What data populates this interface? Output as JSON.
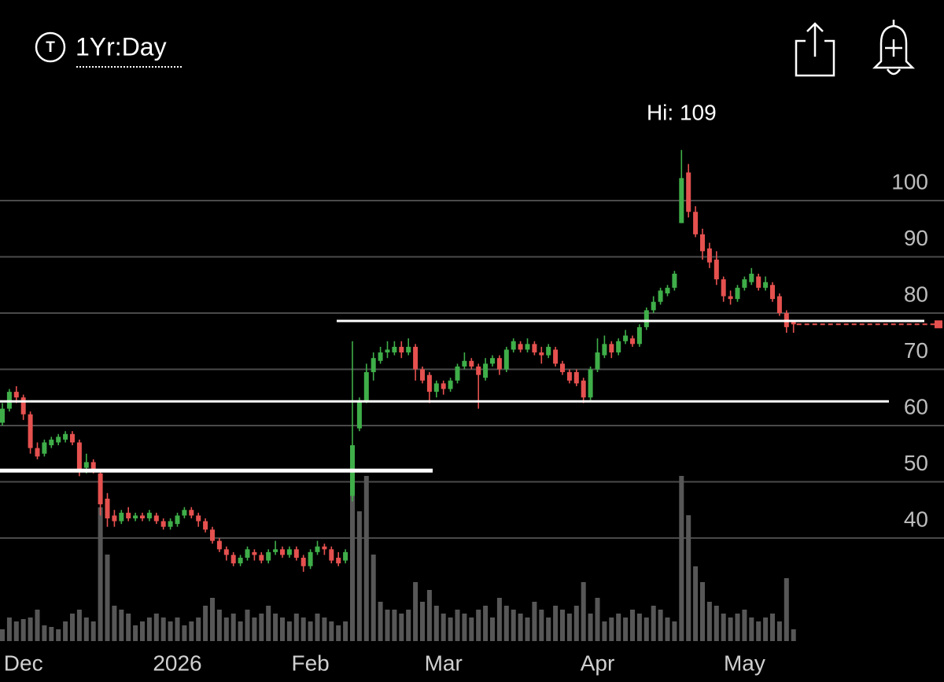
{
  "header": {
    "icon": "T",
    "period": "1Yr:Day"
  },
  "chart_data": {
    "type": "candlestick",
    "annotation": "Hi: 109",
    "categories": [
      null,
      null,
      null,
      "Dec",
      null,
      null,
      null,
      null,
      null,
      null,
      null,
      null,
      null,
      null,
      null,
      null,
      null,
      null,
      null,
      null,
      null,
      null,
      null,
      null,
      null,
      "2026",
      null,
      null,
      null,
      null,
      null,
      null,
      null,
      null,
      null,
      null,
      null,
      null,
      null,
      null,
      null,
      null,
      null,
      null,
      "Feb",
      null,
      null,
      null,
      null,
      null,
      null,
      null,
      null,
      null,
      null,
      null,
      null,
      null,
      null,
      null,
      null,
      null,
      null,
      "Mar",
      null,
      null,
      null,
      null,
      null,
      null,
      null,
      null,
      null,
      null,
      null,
      null,
      null,
      null,
      null,
      null,
      null,
      null,
      null,
      null,
      null,
      "Apr",
      null,
      null,
      null,
      null,
      null,
      null,
      null,
      null,
      null,
      null,
      null,
      null,
      null,
      null,
      null,
      null,
      null,
      null,
      null,
      null,
      "May",
      null,
      null,
      null,
      null,
      null,
      null,
      null
    ],
    "open": [
      60.5,
      63,
      66,
      65,
      62,
      56,
      55,
      56.5,
      57,
      57.5,
      58.5,
      57,
      52.5,
      53.5,
      51.5,
      47,
      44,
      43,
      44.5,
      43.5,
      44,
      43.5,
      44,
      43,
      42,
      42.5,
      44,
      45,
      44,
      43,
      41.5,
      39.5,
      38,
      37,
      35.5,
      36.5,
      37.5,
      37,
      36,
      37.5,
      38,
      37,
      38,
      36.5,
      35,
      37.5,
      38.5,
      38,
      36.5,
      36,
      47.5,
      59.5,
      64.5,
      69.5,
      71.5,
      73,
      73,
      74,
      73,
      74,
      70,
      69,
      66,
      67.5,
      66.5,
      68,
      70.5,
      71.5,
      70.5,
      68.5,
      71,
      72,
      70,
      73.5,
      74.5,
      73.5,
      74.5,
      73,
      72.5,
      73.5,
      71,
      69.5,
      69.5,
      68,
      65,
      70,
      72.5,
      74.5,
      73,
      75,
      75.5,
      74.5,
      77.5,
      80.5,
      82,
      83.5,
      84.5,
      96,
      105,
      98,
      94,
      91.5,
      89.5,
      86,
      83,
      82.5,
      84.5,
      85.5,
      86.5,
      84.5,
      85,
      83,
      80,
      78.5
    ],
    "high": [
      64,
      66.5,
      67,
      65.5,
      62.5,
      57,
      57.5,
      58,
      58.5,
      59,
      59,
      57.5,
      55,
      54,
      52,
      48,
      45,
      45,
      45.5,
      44.5,
      44.5,
      45,
      44.5,
      43.5,
      43.5,
      44.5,
      45.5,
      45.5,
      44.5,
      43.5,
      42,
      40,
      38.5,
      37.5,
      37,
      38.5,
      38,
      37.5,
      38,
      39.5,
      38.5,
      38.5,
      38.5,
      37,
      38,
      39.5,
      39,
      38.5,
      37.5,
      38,
      75,
      65,
      71,
      73,
      74,
      75,
      75,
      75,
      75.5,
      74.5,
      70.5,
      69.5,
      68,
      68,
      68.5,
      71,
      73,
      72,
      71,
      72,
      72.5,
      72.5,
      74,
      75.5,
      75,
      75.5,
      75,
      74,
      74.5,
      74,
      71.5,
      70,
      70,
      68.5,
      70.5,
      75.5,
      76,
      75,
      75.5,
      77,
      76,
      78,
      81,
      83,
      84.5,
      85,
      87.5,
      109,
      106.5,
      99,
      95,
      92.5,
      91,
      86.5,
      84,
      85,
      86.5,
      88,
      87,
      86.5,
      85.5,
      83.5,
      80.5,
      78.5
    ],
    "low": [
      60,
      62.5,
      64,
      61,
      55,
      54,
      54.5,
      56,
      56.5,
      57,
      56.5,
      51,
      51.5,
      51.5,
      44,
      42,
      42,
      42.5,
      43,
      43,
      43,
      43,
      42.5,
      41.5,
      41.5,
      42,
      43.5,
      43.5,
      42,
      41,
      39,
      37.5,
      36,
      35,
      35,
      36,
      36,
      35.5,
      35.5,
      37,
      36.5,
      36.5,
      36,
      34,
      34.5,
      37,
      37,
      35.5,
      35,
      35.5,
      46.5,
      59,
      64,
      68,
      71,
      72,
      72.5,
      72,
      72.5,
      68,
      67.5,
      64,
      65,
      65.5,
      66,
      67.5,
      70,
      70,
      63,
      68,
      70.5,
      69,
      69.5,
      73,
      73,
      73,
      72.5,
      71,
      72,
      70.5,
      69,
      67.5,
      67,
      64,
      64.5,
      69.5,
      72,
      72,
      72.5,
      74.5,
      74,
      74,
      77,
      80,
      81.5,
      83,
      84,
      96,
      97,
      93.5,
      89.5,
      88,
      85,
      82,
      81.5,
      82,
      84,
      85,
      84,
      84,
      82,
      79.5,
      76.5,
      76.5
    ],
    "close": [
      63,
      66,
      65,
      62,
      56,
      54.5,
      57,
      57.5,
      58,
      58.5,
      57,
      52,
      53.5,
      52,
      46,
      43.5,
      43,
      44.5,
      43.5,
      44,
      43.5,
      44.5,
      43,
      42,
      43,
      44,
      45,
      44,
      43,
      41.5,
      39.5,
      38,
      37,
      35.5,
      36.5,
      38,
      37,
      36,
      37.5,
      38,
      37,
      38,
      36.5,
      35,
      37.5,
      38.5,
      38,
      36,
      35.5,
      37.5,
      56.5,
      64.5,
      69.5,
      72,
      73,
      73.5,
      74,
      73,
      74,
      70,
      68,
      66,
      67.5,
      66.5,
      68,
      70.5,
      71.5,
      70.5,
      69,
      71,
      72,
      70,
      73.5,
      75,
      73.5,
      74.5,
      73,
      72.5,
      74,
      71,
      69.5,
      68,
      67.5,
      65,
      70,
      73,
      74.5,
      73,
      75,
      76,
      74.5,
      77.5,
      80.5,
      82,
      84,
      84.5,
      87,
      104,
      98,
      94,
      91,
      89,
      86,
      83,
      82.5,
      84.5,
      86,
      87,
      84.5,
      85.5,
      82.5,
      80,
      77.5,
      78
    ],
    "volume": [
      15,
      30,
      25,
      28,
      30,
      40,
      20,
      18,
      15,
      25,
      35,
      40,
      30,
      25,
      170,
      110,
      45,
      40,
      35,
      20,
      25,
      30,
      35,
      30,
      25,
      30,
      20,
      25,
      30,
      45,
      55,
      40,
      30,
      35,
      25,
      40,
      30,
      35,
      45,
      35,
      30,
      25,
      35,
      30,
      25,
      35,
      30,
      25,
      20,
      25,
      185,
      165,
      210,
      110,
      50,
      40,
      40,
      35,
      40,
      75,
      50,
      65,
      45,
      35,
      30,
      40,
      35,
      30,
      40,
      45,
      30,
      55,
      45,
      40,
      35,
      30,
      50,
      40,
      30,
      45,
      40,
      35,
      45,
      75,
      35,
      55,
      25,
      30,
      35,
      30,
      40,
      35,
      30,
      45,
      40,
      30,
      25,
      210,
      160,
      95,
      75,
      50,
      45,
      35,
      30,
      35,
      40,
      30,
      25,
      30,
      35,
      25,
      80,
      15
    ],
    "ylim": [
      20,
      110
    ],
    "yticks": [
      40,
      50,
      60,
      70,
      80,
      90,
      100
    ],
    "grid": true,
    "up_color": "#3fae49",
    "down_color": "#e5514f",
    "volume_color": "#575757",
    "levels": [
      78.6,
      64.3,
      52
    ]
  }
}
